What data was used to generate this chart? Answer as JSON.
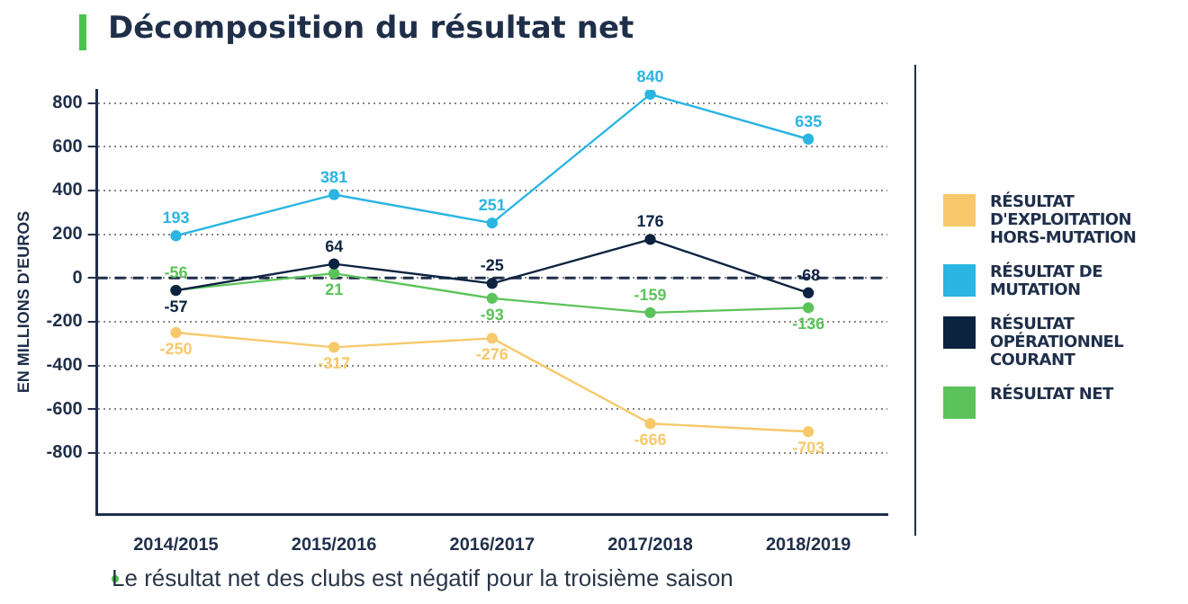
{
  "chart_data": {
    "type": "line",
    "title": "Décomposition du résultat net",
    "ylabel": "EN MILLIONS D'EUROS",
    "categories": [
      "2014/2015",
      "2015/2016",
      "2016/2017",
      "2017/2018",
      "2018/2019"
    ],
    "series": [
      {
        "name": "RÉSULTAT D'EXPLOITATION HORS-MUTATION",
        "color": "#f7c96b",
        "values": [
          -250,
          -317,
          -276,
          -666,
          -703
        ]
      },
      {
        "name": "RÉSULTAT DE MUTATION",
        "color": "#2bb5e3",
        "values": [
          193,
          381,
          251,
          840,
          635
        ]
      },
      {
        "name": "RÉSULTAT OPÉRATIONNEL COURANT",
        "color": "#0c2340",
        "values": [
          -57,
          64,
          -25,
          176,
          -68
        ]
      },
      {
        "name": "RÉSULTAT NET",
        "color": "#5cc35a",
        "values": [
          -56,
          21,
          -93,
          -159,
          -136
        ]
      }
    ],
    "ylim": [
      -1080,
      860
    ],
    "yticks": [
      -800,
      -600,
      -400,
      -200,
      0,
      200,
      400,
      600,
      800
    ],
    "grid": "y",
    "legend": "right",
    "marker": "circle",
    "line_style": "solid",
    "data_labels": true,
    "ref_lines": [
      {
        "axis": "y",
        "value": 0,
        "color": "#1f2f4a",
        "line_style": "dashed"
      }
    ],
    "annotations": [
      "Le résultat net des clubs est négatif pour la troisième saison"
    ]
  }
}
